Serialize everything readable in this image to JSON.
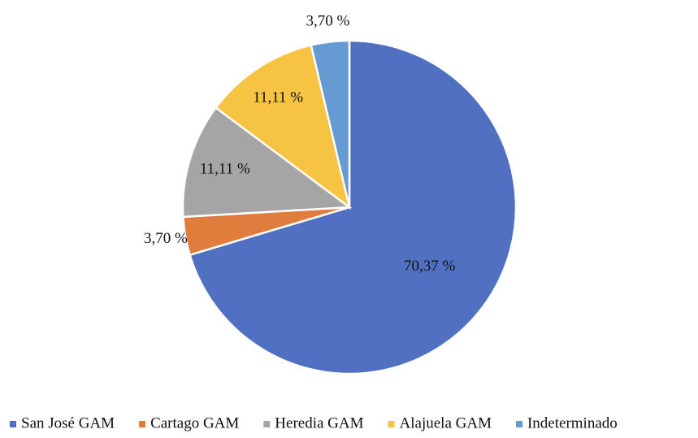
{
  "chart_data": {
    "type": "pie",
    "categories": [
      "San José GAM",
      "Cartago GAM",
      "Heredia GAM",
      "Alajuela GAM",
      "Indeterminado"
    ],
    "values": [
      70.37,
      3.7,
      11.11,
      11.11,
      3.7
    ],
    "value_labels": [
      "70,37 %",
      "3,70 %",
      "11,11 %",
      "11,11 %",
      "3,70 %"
    ],
    "colors": [
      "#5071c1",
      "#e07c3c",
      "#a5a5a5",
      "#f6c342",
      "#659bd3"
    ],
    "legend": "bottom"
  }
}
